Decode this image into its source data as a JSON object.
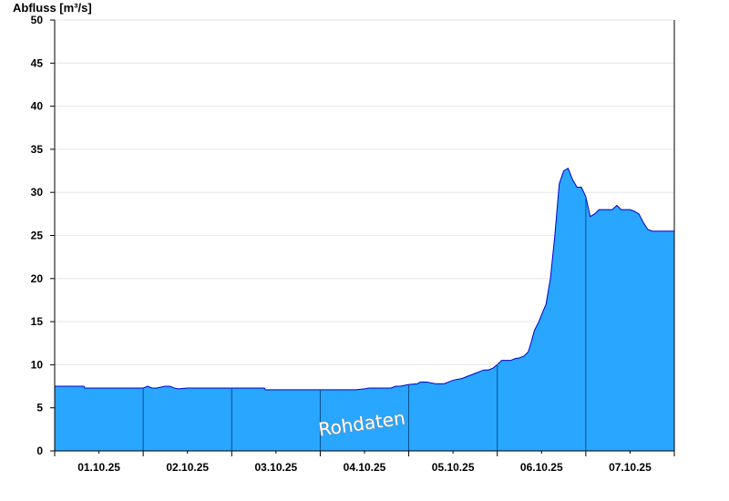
{
  "chart_data": {
    "type": "area",
    "ylabel": "Abfluss [m³/s]",
    "ylim": [
      0,
      50
    ],
    "yticks": [
      0,
      5,
      10,
      15,
      20,
      25,
      30,
      35,
      40,
      45,
      50
    ],
    "x_day_labels": [
      "01.10.25",
      "02.10.25",
      "03.10.25",
      "04.10.25",
      "05.10.25",
      "06.10.25",
      "07.10.25"
    ],
    "xlim": [
      0,
      7
    ],
    "watermark": "Rohdaten",
    "grid": true,
    "colors": {
      "fill": "#29a6ff",
      "line": "#0000cc",
      "grid": "#e6e6e6",
      "axis": "#000000"
    },
    "series": [
      {
        "x": [
          0,
          0.33,
          0.34,
          0.8,
          1.0,
          1.05,
          1.1,
          1.15,
          1.25,
          1.3,
          1.35,
          1.4,
          1.5,
          1.55,
          1.6,
          1.8,
          2.0,
          2.2,
          2.37,
          2.38,
          2.6,
          3.0,
          3.4,
          3.5,
          3.55,
          3.8,
          3.85,
          3.9,
          4.0,
          4.1,
          4.13,
          4.2,
          4.3,
          4.4,
          4.45,
          4.5,
          4.6,
          4.65,
          4.7,
          4.75,
          4.8,
          4.85,
          4.9,
          4.95,
          5.0,
          5.05,
          5.1,
          5.15,
          5.2,
          5.25,
          5.3,
          5.35,
          5.38,
          5.42,
          5.47,
          5.5,
          5.55,
          5.6,
          5.65,
          5.7,
          5.75,
          5.8,
          5.85,
          5.9,
          5.95,
          6.0,
          6.05,
          6.1,
          6.15,
          6.2,
          6.3,
          6.35,
          6.4,
          6.45,
          6.5,
          6.55,
          6.6,
          6.65,
          6.7,
          6.75,
          6.8,
          6.85,
          6.9,
          6.95,
          7.0
        ],
        "values": [
          7.5,
          7.5,
          7.3,
          7.3,
          7.3,
          7.5,
          7.3,
          7.3,
          7.5,
          7.5,
          7.3,
          7.2,
          7.3,
          7.3,
          7.3,
          7.3,
          7.3,
          7.3,
          7.3,
          7.1,
          7.1,
          7.1,
          7.1,
          7.2,
          7.3,
          7.3,
          7.5,
          7.5,
          7.7,
          7.8,
          8.0,
          8.0,
          7.8,
          7.8,
          8.0,
          8.2,
          8.4,
          8.6,
          8.8,
          9.0,
          9.2,
          9.4,
          9.4,
          9.6,
          10.0,
          10.5,
          10.5,
          10.5,
          10.7,
          10.8,
          11.0,
          11.5,
          12.5,
          14.0,
          15.0,
          15.8,
          17.0,
          20.0,
          25.0,
          31.0,
          32.5,
          32.8,
          31.5,
          30.6,
          30.6,
          29.5,
          27.2,
          27.5,
          28.0,
          28.0,
          28.0,
          28.5,
          28.0,
          28.0,
          28.0,
          27.8,
          27.5,
          26.5,
          25.7,
          25.5,
          25.5,
          25.5,
          25.5,
          25.5,
          25.5
        ]
      }
    ]
  }
}
